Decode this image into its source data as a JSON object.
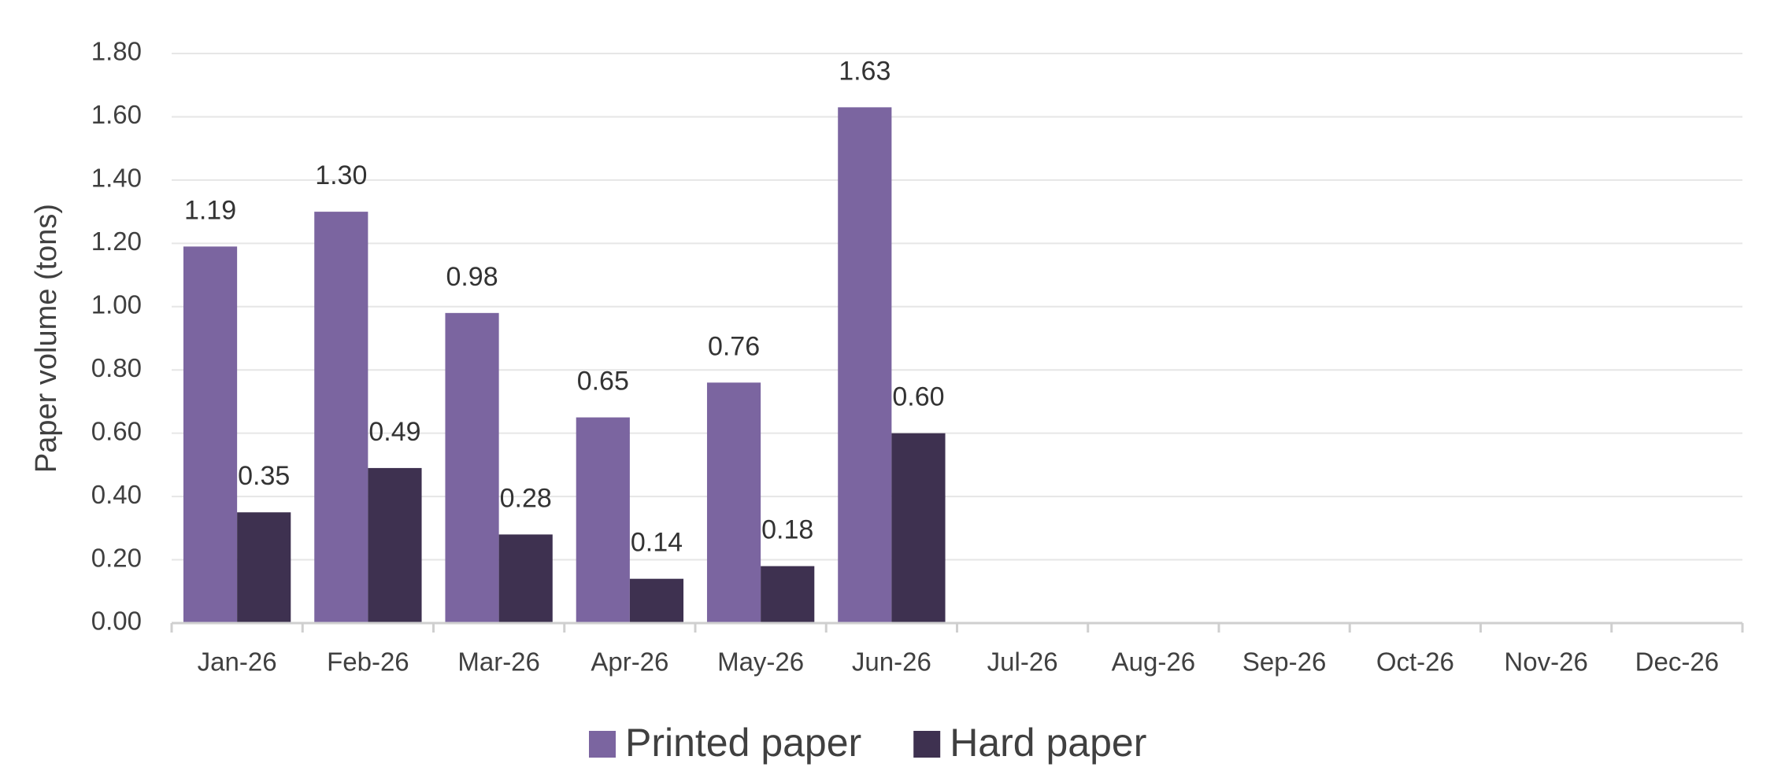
{
  "chart_data": {
    "type": "bar",
    "y_label": "Paper volume (tons)",
    "categories": [
      "Jan-26",
      "Feb-26",
      "Mar-26",
      "Apr-26",
      "May-26",
      "Jun-26",
      "Jul-26",
      "Aug-26",
      "Sep-26",
      "Oct-26",
      "Nov-26",
      "Dec-26"
    ],
    "series": [
      {
        "name": "Printed paper",
        "color": "#7b65a0",
        "values": [
          1.19,
          1.3,
          0.98,
          0.65,
          0.76,
          1.63,
          null,
          null,
          null,
          null,
          null,
          null
        ],
        "value_labels": [
          "1.19",
          "1.30",
          "0.98",
          "0.65",
          "0.76",
          "1.63",
          null,
          null,
          null,
          null,
          null,
          null
        ]
      },
      {
        "name": "Hard paper",
        "color": "#3e3150",
        "values": [
          0.35,
          0.49,
          0.28,
          0.14,
          0.18,
          0.6,
          null,
          null,
          null,
          null,
          null,
          null
        ],
        "value_labels": [
          "0.35",
          "0.49",
          "0.28",
          "0.14",
          "0.18",
          "0.60",
          null,
          null,
          null,
          null,
          null,
          null
        ]
      }
    ],
    "ylim": [
      0,
      1.8
    ],
    "yticks": [
      {
        "value": 0,
        "label": "0.00"
      },
      {
        "value": 0.2,
        "label": "0.20"
      },
      {
        "value": 0.4,
        "label": "0.40"
      },
      {
        "value": 0.6,
        "label": "0.60"
      },
      {
        "value": 0.8,
        "label": "0.80"
      },
      {
        "value": 1,
        "label": "1.00"
      },
      {
        "value": 1.2,
        "label": "1.20"
      },
      {
        "value": 1.4,
        "label": "1.40"
      },
      {
        "value": 1.6,
        "label": "1.60"
      },
      {
        "value": 1.8,
        "label": "1.80"
      }
    ],
    "grid": true,
    "legend": "bottom"
  }
}
